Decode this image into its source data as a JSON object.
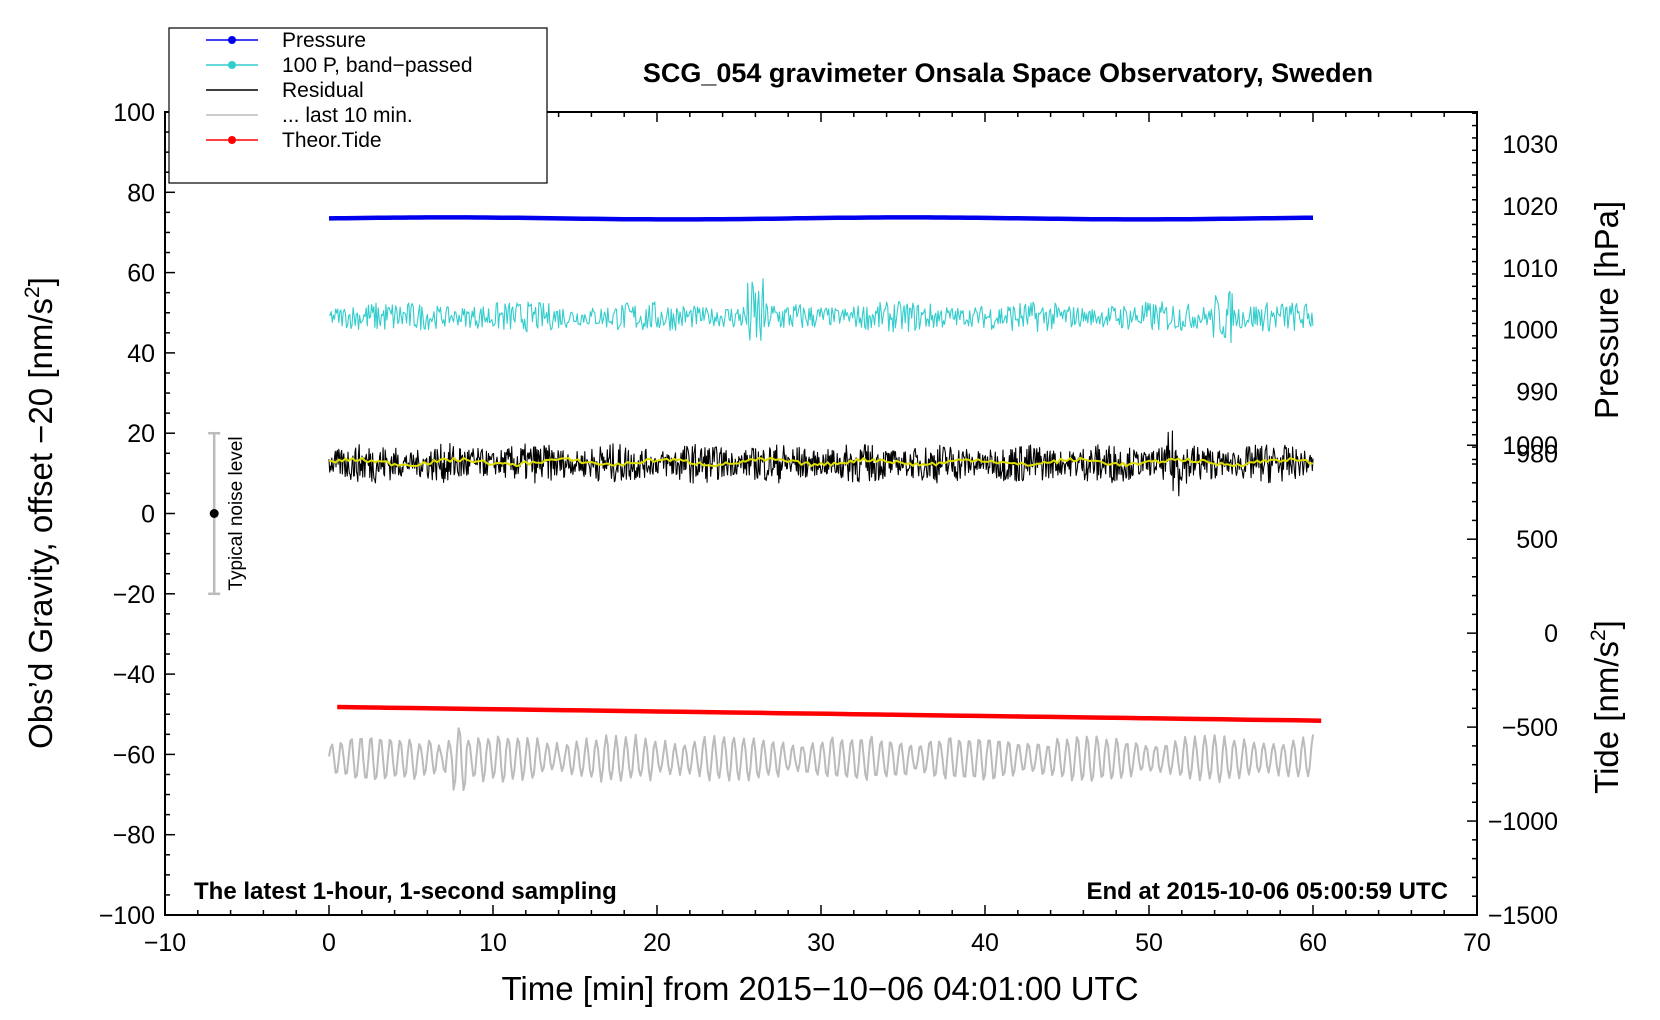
{
  "chart_data": {
    "type": "line",
    "title": "SCG_054 gravimeter Onsala Space Observatory, Sweden",
    "xlabel": "Time [min] from 2015−10−06 04:01:00 UTC",
    "ylabel": "Obs’d Gravity, offset −20 [nm/s",
    "ylabel_sup": "2",
    "ylabel_tail": "]",
    "y2_pressure_label": "Pressure [hPa]",
    "y2_tide_label": "Tide [nm/s",
    "y2_tide_sup": "2",
    "y2_tide_tail": "]",
    "xlim": [
      -10,
      70
    ],
    "ylim": [
      -100,
      100
    ],
    "x_ticks": [
      -10,
      0,
      10,
      20,
      30,
      40,
      50,
      60,
      70
    ],
    "x_tick_labels": [
      "−10",
      "0",
      "10",
      "20",
      "30",
      "40",
      "50",
      "60",
      "70"
    ],
    "y_ticks": [
      -100,
      -80,
      -60,
      -40,
      -20,
      0,
      20,
      40,
      60,
      80,
      100
    ],
    "y_tick_labels": [
      "−100",
      "−80",
      "−60",
      "−40",
      "−20",
      "0",
      "20",
      "40",
      "60",
      "80",
      "100"
    ],
    "pressure_axis": {
      "ticks": [
        980,
        990,
        1000,
        1010,
        1020,
        1030
      ],
      "tick_labels": [
        "980",
        "990",
        "1000",
        "1010",
        "1020",
        "1030"
      ],
      "maps_to_gravity": [
        [
          980,
          15
        ],
        [
          1030,
          92
        ]
      ]
    },
    "tide_axis": {
      "ticks": [
        -1500,
        -1000,
        -500,
        0,
        500,
        1000
      ],
      "tick_labels": [
        "−1500",
        "−1000",
        "−500",
        "0",
        "500",
        "1000"
      ],
      "maps_to_gravity": [
        [
          -1500,
          -100
        ],
        [
          1000,
          17
        ]
      ]
    },
    "series": [
      {
        "name": "Pressure",
        "color": "#0000ee",
        "kind": "flat",
        "x_range": [
          0,
          60
        ],
        "center": 73.5,
        "amplitude": 0.25
      },
      {
        "name": "100 P, band−passed",
        "color": "#33cccc",
        "kind": "noise",
        "x_range": [
          0,
          60
        ],
        "center": 49,
        "amplitude": 3.5
      },
      {
        "name": "Residual",
        "color": "#000000",
        "kind": "noise",
        "x_range": [
          0,
          60
        ],
        "center": 12.5,
        "amplitude": 4.5
      },
      {
        "name": "Residual smoothed",
        "color": "#dddd00",
        "kind": "smooth",
        "x_range": [
          0,
          60
        ],
        "center": 12.8,
        "amplitude": 1.0
      },
      {
        "name": "... last 10 min.",
        "color": "#bbbbbb",
        "kind": "wave",
        "x_range": [
          0,
          60
        ],
        "center": -61,
        "amplitude": 5.5
      },
      {
        "name": "Theor.Tide",
        "color": "#ff0000",
        "kind": "linear",
        "x_range": [
          0.5,
          60.5
        ],
        "start": -48.2,
        "end": -51.6
      }
    ],
    "legend": {
      "position": "top-left",
      "entries": [
        {
          "label": "Pressure",
          "color": "#0000ee",
          "marker": true
        },
        {
          "label": "100 P, band−passed",
          "color": "#33cccc",
          "marker": true
        },
        {
          "label": "Residual",
          "color": "#000000",
          "marker": false
        },
        {
          "label": "... last 10 min.",
          "color": "#bbbbbb",
          "marker": false
        },
        {
          "label": "Theor.Tide",
          "color": "#ff0000",
          "marker": true
        }
      ]
    },
    "noise_level": {
      "label": "Typical noise level",
      "x": -7,
      "center": 0,
      "low": -20,
      "high": 20
    },
    "annotations": {
      "bottom_left": "The latest 1-hour, 1-second sampling",
      "bottom_right": "End at 2015-10-06 05:00:59 UTC"
    }
  }
}
